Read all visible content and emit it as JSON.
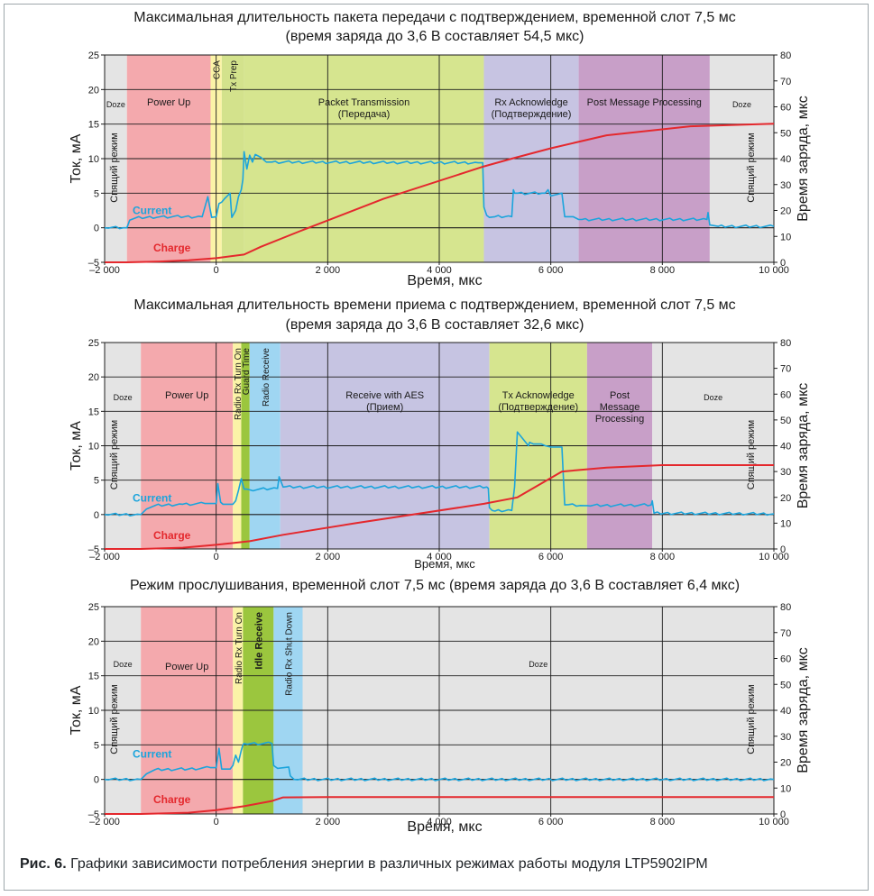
{
  "caption": {
    "label": "Рис. 6.",
    "text": " Графики зависимости потребления энергии в различных режимах работы модуля LTP5902IPM"
  },
  "colors": {
    "doze": "#e4e4e4",
    "power_up": "#f4a9ad",
    "cca": "#fbf3a7",
    "tx_prep": "#d3e28c",
    "packet": "#d6e58f",
    "rx_ack": "#c7c4e2",
    "post": "#c89fc8",
    "radio_on": "#fbf3a7",
    "guard": "#9bc63e",
    "radio_rx": "#9fd6f2",
    "receive": "#c6c4e2",
    "tx_ack": "#d6e58f",
    "idle": "#9bc63e",
    "shutdown": "#9fd6f2",
    "current": "#1ba4dc",
    "charge": "#e4282d",
    "grid": "#1c1c1c"
  },
  "chart_data": [
    {
      "type": "line",
      "title": "Максимальная длительность пакета передачи с подтверждением, временной слот 7,5 мс",
      "subtitle": "(время заряда до 3,6 В составляет 54,5 мкс)",
      "xlabel": "Время, мкс",
      "ylabel": "Ток, мА",
      "ylabel_right": "Время заряда, мкс",
      "xlim": [
        -2000,
        10000
      ],
      "ylim": [
        -5,
        25
      ],
      "ylim_right": [
        0,
        80
      ],
      "x_ticks": [
        "–2 000",
        "0",
        "2 000",
        "4 000",
        "6 000",
        "8 000",
        "10 000"
      ],
      "y_ticks": [
        "–5",
        "0",
        "5",
        "10",
        "15",
        "20",
        "25"
      ],
      "y_right_ticks": [
        "0",
        "10",
        "20",
        "30",
        "40",
        "50",
        "60",
        "70",
        "80"
      ],
      "grid": true,
      "doze_label_left": "Спящий режим",
      "doze_label_right": "Спящий режим",
      "phases": [
        {
          "name": "Doze",
          "start": -2000,
          "end": -1600,
          "color": "doze",
          "label": "Doze",
          "orient": "h"
        },
        {
          "name": "Power Up",
          "start": -1600,
          "end": -100,
          "color": "power_up",
          "label": "Power Up",
          "orient": "h"
        },
        {
          "name": "CCA",
          "start": -100,
          "end": 100,
          "color": "cca",
          "label": "CCA",
          "orient": "v"
        },
        {
          "name": "Tx Prep",
          "start": 100,
          "end": 500,
          "color": "tx_prep",
          "label": "Tx Prep",
          "orient": "v"
        },
        {
          "name": "Packet Transmission",
          "start": 500,
          "end": 4800,
          "color": "packet",
          "label": "Packet Transmission",
          "label2": "(Передача)",
          "orient": "h"
        },
        {
          "name": "Rx Acknowledge",
          "start": 4800,
          "end": 6500,
          "color": "rx_ack",
          "label": "Rx Acknowledge",
          "label2": "(Подтверждение)",
          "orient": "h"
        },
        {
          "name": "Post Message Processing",
          "start": 6500,
          "end": 8850,
          "color": "post",
          "label": "Post Message Processing",
          "orient": "h"
        },
        {
          "name": "Doze",
          "start": 8850,
          "end": 10000,
          "color": "doze",
          "label": "Doze",
          "orient": "h"
        }
      ],
      "series": [
        {
          "name": "Current",
          "color": "current",
          "x": [
            -2000,
            -1600,
            -1550,
            -1450,
            -1000,
            -250,
            -150,
            -80,
            0,
            50,
            100,
            150,
            250,
            280,
            350,
            400,
            450,
            480,
            500,
            550,
            600,
            650,
            700,
            800,
            900,
            1000,
            4700,
            4780,
            4800,
            4850,
            4900,
            5000,
            5300,
            5330,
            5350,
            5900,
            5950,
            6000,
            6200,
            6250,
            6400,
            6500,
            8800,
            8820,
            8850,
            9000,
            10000
          ],
          "y": [
            0,
            0,
            1.1,
            1.4,
            1.6,
            1.6,
            4.5,
            1.5,
            1.6,
            3.5,
            3.7,
            4.2,
            5,
            1.5,
            2.5,
            4.5,
            5.5,
            7,
            11,
            8.5,
            10.5,
            9.5,
            10.6,
            10.2,
            9.5,
            9.5,
            9.4,
            9.4,
            3,
            1.8,
            1.5,
            1.6,
            1.6,
            5.5,
            5,
            5,
            5.5,
            4.6,
            5,
            1.6,
            1.6,
            1.2,
            1.2,
            2.2,
            0.4,
            0.2,
            0.2
          ]
        },
        {
          "name": "Charge",
          "axis": "right",
          "color": "charge",
          "x": [
            -2000,
            -1600,
            -1000,
            -500,
            0,
            500,
            800,
            1500,
            3000,
            4800,
            5300,
            6000,
            7000,
            8500,
            10000
          ],
          "y": [
            0,
            0,
            0.3,
            0.8,
            1.6,
            3,
            6,
            12,
            24.5,
            37,
            40,
            44,
            49,
            52.5,
            53.5
          ]
        }
      ]
    },
    {
      "type": "line",
      "title": "Максимальная длительность времени приема с подтверждением, временной слот 7,5 мс",
      "subtitle": "(время заряда до 3,6 В составляет 32,6 мкс)",
      "xlabel": "Время, мкс",
      "ylabel": "Ток, мА",
      "ylabel_right": "Время заряда, мкс",
      "xlim": [
        -2000,
        10000
      ],
      "ylim": [
        -5,
        25
      ],
      "ylim_right": [
        0,
        80
      ],
      "x_ticks": [
        "–2 000",
        "0",
        "2 000",
        "4 000",
        "6 000",
        "8 000",
        "10 000"
      ],
      "y_ticks": [
        "–5",
        "0",
        "5",
        "10",
        "15",
        "20",
        "25"
      ],
      "y_right_ticks": [
        "0",
        "10",
        "20",
        "30",
        "40",
        "50",
        "60",
        "70",
        "80"
      ],
      "grid": true,
      "doze_label_left": "Спящий режим",
      "doze_label_right": "Спящий режим",
      "phases": [
        {
          "name": "Doze",
          "start": -2000,
          "end": -1350,
          "color": "doze",
          "label": "Doze",
          "orient": "h"
        },
        {
          "name": "Power Up",
          "start": -1350,
          "end": 300,
          "color": "power_up",
          "label": "Power Up",
          "orient": "h"
        },
        {
          "name": "Radio Rx Turn On",
          "start": 300,
          "end": 450,
          "color": "radio_on",
          "label": "Radio Rx Turn On",
          "orient": "v"
        },
        {
          "name": "Guard Time",
          "start": 450,
          "end": 600,
          "color": "guard",
          "label": "Guard Time",
          "orient": "v"
        },
        {
          "name": "Radio Receive",
          "start": 600,
          "end": 1150,
          "color": "radio_rx",
          "label": "Radio Receive",
          "orient": "v"
        },
        {
          "name": "Receive with AES",
          "start": 1150,
          "end": 4900,
          "color": "receive",
          "label": "Receive with AES",
          "label2": "(Прием)",
          "orient": "h"
        },
        {
          "name": "Tx Acknowledge",
          "start": 4900,
          "end": 6650,
          "color": "tx_ack",
          "label": "Tx Acknowledge",
          "label2": "(Подтверждение)",
          "orient": "h"
        },
        {
          "name": "Post Message Processing",
          "start": 6650,
          "end": 7820,
          "color": "post",
          "label": "Post",
          "label2": "Message",
          "label3": "Processing",
          "orient": "h"
        },
        {
          "name": "Doze",
          "start": 7820,
          "end": 10000,
          "color": "doze",
          "label": "Doze",
          "orient": "h"
        }
      ],
      "series": [
        {
          "name": "Current",
          "color": "current",
          "x": [
            -2000,
            -1350,
            -1250,
            -1100,
            -600,
            -200,
            0,
            30,
            80,
            120,
            300,
            350,
            400,
            450,
            500,
            550,
            600,
            1100,
            1130,
            1200,
            4850,
            4880,
            4900,
            4950,
            5000,
            5300,
            5350,
            5400,
            5600,
            5620,
            5900,
            6000,
            6200,
            6250,
            6600,
            6650,
            7800,
            7820,
            7850,
            10000
          ],
          "y": [
            0,
            0,
            0.8,
            1.3,
            1.5,
            1.6,
            1.6,
            4.5,
            1.8,
            1.5,
            1.5,
            2,
            3.5,
            5.2,
            3.7,
            3.7,
            3.6,
            3.8,
            5.5,
            4,
            4,
            3.8,
            1,
            0.6,
            0.5,
            0.6,
            4,
            12,
            10,
            10.5,
            10,
            9.8,
            9.8,
            1.4,
            1.3,
            1.3,
            1.4,
            2,
            0.2,
            0.1
          ]
        },
        {
          "name": "Charge",
          "axis": "right",
          "color": "charge",
          "x": [
            -2000,
            -1350,
            -600,
            0,
            600,
            1200,
            2500,
            4800,
            5400,
            6200,
            7000,
            8000,
            10000
          ],
          "y": [
            0,
            0,
            0.5,
            1.6,
            3,
            5.5,
            10,
            17.5,
            20,
            30,
            31.5,
            32.5,
            32.5
          ]
        }
      ]
    },
    {
      "type": "line",
      "title": "Режим прослушивания, временной слот 7,5 мс (время заряда до 3,6 В составляет 6,4 мкс)",
      "xlabel": "Время, мкс",
      "ylabel": "Ток, мА",
      "ylabel_right": "Время заряда, мкс",
      "xlim": [
        -2000,
        10000
      ],
      "ylim": [
        -5,
        25
      ],
      "ylim_right": [
        0,
        80
      ],
      "x_ticks": [
        "–2 000",
        "0",
        "2 000",
        "4 000",
        "6 000",
        "8 000",
        "10 000"
      ],
      "y_ticks": [
        "–5",
        "0",
        "5",
        "10",
        "15",
        "20",
        "25"
      ],
      "y_right_ticks": [
        "0",
        "10",
        "20",
        "30",
        "40",
        "50",
        "60",
        "70",
        "80"
      ],
      "grid": true,
      "doze_label_left": "Спящий режим",
      "doze_label_right": "Спящий режим",
      "phases": [
        {
          "name": "Doze",
          "start": -2000,
          "end": -1350,
          "color": "doze",
          "label": "Doze",
          "orient": "h"
        },
        {
          "name": "Power Up",
          "start": -1350,
          "end": 300,
          "color": "power_up",
          "label": "Power Up",
          "orient": "h"
        },
        {
          "name": "Radio Rx Turn On",
          "start": 300,
          "end": 480,
          "color": "radio_on",
          "label": "Radio Rx Turn On",
          "orient": "v"
        },
        {
          "name": "Idle Receive",
          "start": 480,
          "end": 1030,
          "color": "idle",
          "label": "Idle Receive",
          "orient": "v"
        },
        {
          "name": "Radio Rx Shut Down",
          "start": 1030,
          "end": 1550,
          "color": "shutdown",
          "label": "Radio Rx Shut Down",
          "orient": "v"
        },
        {
          "name": "Doze",
          "start": 1550,
          "end": 10000,
          "color": "doze",
          "label": "Doze",
          "orient": "h"
        }
      ],
      "series": [
        {
          "name": "Current",
          "color": "current",
          "x": [
            -2000,
            -1350,
            -1250,
            -1100,
            -500,
            -100,
            0,
            50,
            100,
            250,
            300,
            350,
            400,
            450,
            480,
            500,
            1000,
            1030,
            1100,
            1300,
            1330,
            1400,
            10000
          ],
          "y": [
            0,
            0,
            0.8,
            1.4,
            1.5,
            1.7,
            1.7,
            4.5,
            1.5,
            1.5,
            2,
            3.5,
            2.5,
            4.2,
            5,
            5.2,
            5.2,
            2,
            1.6,
            1.8,
            0.5,
            0,
            0
          ]
        },
        {
          "name": "Charge",
          "axis": "right",
          "color": "charge",
          "x": [
            -2000,
            -1350,
            -500,
            0,
            500,
            1000,
            1200,
            2000,
            10000
          ],
          "y": [
            0,
            0,
            0.5,
            1.5,
            3,
            5,
            6.4,
            6.5,
            6.5
          ]
        }
      ]
    }
  ]
}
